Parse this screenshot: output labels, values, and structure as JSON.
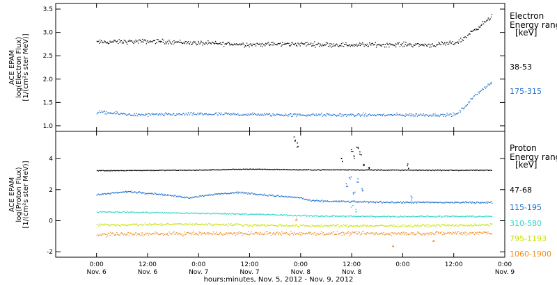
{
  "chart_data": [
    {
      "type": "scatter",
      "panel": "electron",
      "ylabel": [
        "ACE EPAM",
        "log(Electron Flux)",
        "[1/(cm²s ster MeV)]"
      ],
      "ylim": [
        0.88,
        3.62
      ],
      "yticks": [
        1.0,
        1.5,
        2.0,
        2.5,
        3.0,
        3.5
      ],
      "ytick_labels": [
        "1.0",
        "1.5",
        "2.0",
        "2.5",
        "3.0",
        "3.5"
      ],
      "legend_title": [
        "Electron",
        "Energy ranges",
        "[keV]"
      ],
      "series": [
        {
          "name": "38-53",
          "color": "#000000",
          "baseline": 2.77,
          "noise": 0.07,
          "anchors": [
            [
              0,
              2.8
            ],
            [
              0.6,
              2.82
            ],
            [
              1,
              2.78
            ],
            [
              1.5,
              2.75
            ],
            [
              2,
              2.76
            ],
            [
              2.5,
              2.74
            ],
            [
              3,
              2.75
            ],
            [
              3.3,
              2.74
            ],
            [
              3.5,
              2.78
            ],
            [
              3.58,
              2.85
            ],
            [
              3.66,
              3.0
            ],
            [
              3.75,
              3.15
            ],
            [
              3.85,
              3.3
            ],
            [
              3.87,
              3.38
            ]
          ]
        },
        {
          "name": "175-315",
          "color": "#1f6fcf",
          "baseline": 1.25,
          "noise": 0.05,
          "anchors": [
            [
              0,
              1.3
            ],
            [
              0.4,
              1.24
            ],
            [
              1,
              1.26
            ],
            [
              1.5,
              1.25
            ],
            [
              2,
              1.24
            ],
            [
              2.5,
              1.24
            ],
            [
              3,
              1.24
            ],
            [
              3.4,
              1.24
            ],
            [
              3.52,
              1.25
            ],
            [
              3.6,
              1.4
            ],
            [
              3.68,
              1.6
            ],
            [
              3.75,
              1.75
            ],
            [
              3.87,
              1.93
            ]
          ]
        }
      ]
    },
    {
      "type": "scatter",
      "panel": "proton",
      "ylabel": [
        "ACE EPAM",
        "log(Proton Flux)",
        "[1/(cm²s ster MeV)]"
      ],
      "ylim": [
        -2.35,
        5.75
      ],
      "yticks": [
        -2,
        0,
        2,
        4
      ],
      "ytick_labels": [
        "-2",
        "0",
        "2",
        "4"
      ],
      "legend_title": [
        "Proton",
        "Energy ranges",
        "[keV]"
      ],
      "series": [
        {
          "name": "47-68",
          "color": "#000000",
          "noise": 0.04,
          "anchors": [
            [
              0,
              3.25
            ],
            [
              1,
              3.28
            ],
            [
              1.5,
              3.35
            ],
            [
              2,
              3.3
            ],
            [
              2.5,
              3.3
            ],
            [
              3,
              3.28
            ],
            [
              3.87,
              3.27
            ]
          ],
          "spikes": [
            [
              1.94,
              5.3
            ],
            [
              1.96,
              4.9
            ],
            [
              2.4,
              3.9
            ],
            [
              2.5,
              4.6
            ],
            [
              2.52,
              4.1
            ],
            [
              2.55,
              4.8
            ],
            [
              2.58,
              4.4
            ],
            [
              2.62,
              3.7
            ],
            [
              2.66,
              3.5
            ],
            [
              3.05,
              3.55
            ]
          ]
        },
        {
          "name": "115-195",
          "color": "#1f6fcf",
          "noise": 0.08,
          "anchors": [
            [
              0,
              1.7
            ],
            [
              0.3,
              1.9
            ],
            [
              0.6,
              1.75
            ],
            [
              0.9,
              1.5
            ],
            [
              1.1,
              1.7
            ],
            [
              1.4,
              1.85
            ],
            [
              1.7,
              1.65
            ],
            [
              2,
              1.5
            ],
            [
              2.1,
              1.3
            ],
            [
              2.5,
              1.25
            ],
            [
              3,
              1.2
            ],
            [
              3.5,
              1.2
            ],
            [
              3.87,
              1.2
            ]
          ],
          "spikes": [
            [
              2.45,
              2.3
            ],
            [
              2.48,
              2.8
            ],
            [
              2.52,
              1.9
            ],
            [
              2.55,
              2.6
            ],
            [
              2.6,
              2.1
            ],
            [
              3.08,
              1.5
            ]
          ]
        },
        {
          "name": "310-580",
          "color": "#30d4cc",
          "noise": 0.07,
          "anchors": [
            [
              0,
              0.6
            ],
            [
              0.5,
              0.55
            ],
            [
              1,
              0.5
            ],
            [
              1.5,
              0.45
            ],
            [
              2,
              0.35
            ],
            [
              2.5,
              0.3
            ],
            [
              3,
              0.3
            ],
            [
              3.5,
              0.3
            ],
            [
              3.87,
              0.3
            ]
          ],
          "spikes": [
            [
              2.5,
              0.9
            ],
            [
              2.54,
              0.7
            ]
          ]
        },
        {
          "name": "795-1193",
          "color": "#c8e000",
          "noise": 0.12,
          "anchors": [
            [
              0,
              -0.25
            ],
            [
              1,
              -0.2
            ],
            [
              2,
              -0.3
            ],
            [
              3,
              -0.3
            ],
            [
              3.87,
              -0.25
            ]
          ],
          "spikes": []
        },
        {
          "name": "1060-1900",
          "color": "#f08c20",
          "noise": 0.18,
          "anchors": [
            [
              0,
              -0.85
            ],
            [
              1,
              -0.8
            ],
            [
              2,
              -0.8
            ],
            [
              3,
              -0.8
            ],
            [
              3.87,
              -0.75
            ]
          ],
          "spikes": [
            [
              1.95,
              0.2
            ],
            [
              2.9,
              -1.6
            ],
            [
              3.3,
              -1.3
            ]
          ]
        }
      ]
    }
  ],
  "x_axis": {
    "xlim": [
      -0.4,
      4.0
    ],
    "ticks": [
      0,
      0.5,
      1,
      1.5,
      2,
      2.5,
      3,
      3.5,
      4
    ],
    "tick_time_labels": [
      "0:00",
      "12:00",
      "0:00",
      "12:00",
      "0:00",
      "12:00",
      "0:00",
      "12:00",
      "0:00"
    ],
    "tick_date_labels": [
      "Nov. 6",
      "Nov. 6",
      "Nov. 7",
      "Nov. 7",
      "Nov. 8",
      "Nov. 8",
      "Nov. 9"
    ],
    "xlabel": "hours:minutes, Nov.  5, 2012 - Nov.  9, 2012"
  }
}
